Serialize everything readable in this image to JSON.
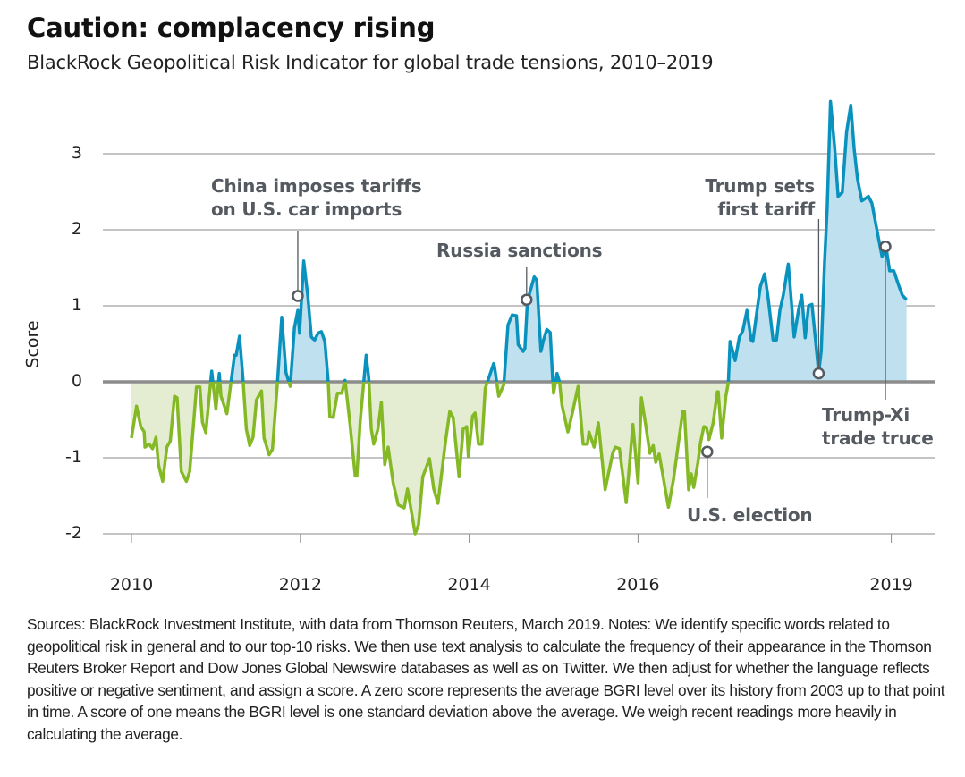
{
  "title": "Caution: complacency rising",
  "subtitle": "BlackRock Geopolitical Risk Indicator for global trade tensions, 2010–2019",
  "footnote": "Sources: BlackRock Investment Institute, with data from Thomson Reuters, March 2019. Notes: We identify specific words related to geopolitical risk in general and to our top-10 risks. We then use text analysis to calculate the frequency of their appearance in the Thomson Reuters Broker Report and Dow Jones Global Newswire databases as well as on Twitter. We then adjust for whether the language reflects positive or negative sentiment, and assign a score. A zero score represents the average BGRI level over its history from 2003 up to that point in time. A score of one means the BGRI level is one standard deviation above the average. We weigh recent readings more heavily in calculating the average.",
  "chart_data": {
    "type": "area",
    "title": "Caution: complacency rising",
    "subtitle": "BlackRock Geopolitical Risk Indicator for global trade tensions, 2010–2019",
    "xlabel": "",
    "ylabel": "Score",
    "xlim": [
      2009.85,
      2019.5
    ],
    "ylim": [
      -2.2,
      3.8
    ],
    "x_ticks": [
      "2010",
      "2012",
      "2014",
      "2016",
      "2019"
    ],
    "x_tick_values": [
      2010,
      2012,
      2014,
      2016,
      2019
    ],
    "y_ticks": [
      "-2",
      "-1",
      "0",
      "1",
      "2",
      "3"
    ],
    "y_tick_values": [
      -2,
      -1,
      0,
      1,
      2,
      3
    ],
    "grid": "horizontal",
    "colors": {
      "positive_line": "#0a92bf",
      "positive_fill": "#bfe0ef",
      "negative_line": "#84b925",
      "negative_fill": "#e4edd2",
      "zero_line": "#8c8c8c",
      "annotation": "#555a60"
    },
    "series": [
      {
        "x": [
          2010.0,
          2010.06,
          2010.11,
          2010.15,
          2010.16,
          2010.21,
          2010.25,
          2010.29,
          2010.32,
          2010.37,
          2010.42,
          2010.46,
          2010.51,
          2010.54,
          2010.59,
          2010.65,
          2010.69,
          2010.77,
          2010.81,
          2010.84,
          2010.88,
          2010.95,
          2011.0,
          2011.04,
          2011.06,
          2011.13,
          2011.22,
          2011.24,
          2011.28,
          2011.32,
          2011.36,
          2011.4,
          2011.44,
          2011.48,
          2011.54,
          2011.57,
          2011.63,
          2011.67,
          2011.73,
          2011.78,
          2011.83,
          2011.88,
          2011.93,
          2011.97,
          2011.99,
          2012.04,
          2012.09,
          2012.13,
          2012.17,
          2012.21,
          2012.25,
          2012.29,
          2012.33,
          2012.35,
          2012.39,
          2012.44,
          2012.49,
          2012.53,
          2012.58,
          2012.65,
          2012.67,
          2012.71,
          2012.78,
          2012.81,
          2012.84,
          2012.87,
          2012.92,
          2012.96,
          2013.0,
          2013.04,
          2013.1,
          2013.16,
          2013.23,
          2013.27,
          2013.36,
          2013.4,
          2013.45,
          2013.53,
          2013.58,
          2013.63,
          2013.72,
          2013.77,
          2013.81,
          2013.88,
          2013.93,
          2013.97,
          2013.99,
          2014.04,
          2014.07,
          2014.11,
          2014.15,
          2014.19,
          2014.29,
          2014.3,
          2014.35,
          2014.41,
          2014.46,
          2014.51,
          2014.56,
          2014.58,
          2014.64,
          2014.66,
          2014.69,
          2014.77,
          2014.8,
          2014.85,
          2014.88,
          2014.92,
          2014.96,
          2014.99,
          2015.0,
          2015.04,
          2015.07,
          2015.1,
          2015.17,
          2015.22,
          2015.29,
          2015.35,
          2015.4,
          2015.42,
          2015.48,
          2015.53,
          2015.61,
          2015.7,
          2015.73,
          2015.78,
          2015.86,
          2015.94,
          2016.0,
          2016.04,
          2016.09,
          2016.14,
          2016.18,
          2016.21,
          2016.25,
          2016.36,
          2016.42,
          2016.53,
          2016.55,
          2016.6,
          2016.63,
          2016.66,
          2016.71,
          2016.74,
          2016.78,
          2016.81,
          2016.84,
          2016.89,
          2016.94,
          2016.95,
          2016.99,
          2017.04,
          2017.07,
          2017.09,
          2017.15,
          2017.2,
          2017.24,
          2017.29,
          2017.34,
          2017.36,
          2017.42,
          2017.45,
          2017.5,
          2017.54,
          2017.6,
          2017.64,
          2017.68,
          2017.72,
          2017.78,
          2017.8,
          2017.85,
          2017.9,
          2017.94,
          2017.98,
          2018.02,
          2018.06,
          2018.14,
          2018.17,
          2018.21,
          2018.24,
          2018.28,
          2018.33,
          2018.37,
          2018.42,
          2018.47,
          2018.52,
          2018.56,
          2018.6,
          2018.65,
          2018.73,
          2018.77,
          2018.85,
          2018.89,
          2018.94,
          2018.98,
          2019.03,
          2019.09,
          2019.13,
          2019.18
        ],
        "y": [
          -0.74,
          -0.32,
          -0.59,
          -0.66,
          -0.86,
          -0.82,
          -0.88,
          -0.73,
          -1.09,
          -1.31,
          -0.86,
          -0.78,
          -0.19,
          -0.21,
          -1.18,
          -1.31,
          -1.18,
          -0.07,
          -0.07,
          -0.53,
          -0.67,
          0.14,
          -0.36,
          0.11,
          -0.19,
          -0.42,
          0.35,
          0.35,
          0.6,
          0.05,
          -0.62,
          -0.84,
          -0.73,
          -0.24,
          -0.12,
          -0.74,
          -0.96,
          -0.89,
          0.0,
          0.85,
          0.12,
          -0.06,
          0.71,
          0.94,
          0.64,
          1.59,
          1.11,
          0.59,
          0.55,
          0.64,
          0.66,
          0.53,
          0.0,
          -0.46,
          -0.47,
          -0.15,
          -0.15,
          0.02,
          -0.47,
          -1.24,
          -1.24,
          -0.51,
          0.35,
          0.05,
          -0.62,
          -0.82,
          -0.62,
          -0.27,
          -1.09,
          -0.86,
          -1.33,
          -1.62,
          -1.66,
          -1.41,
          -2.0,
          -1.88,
          -1.25,
          -1.01,
          -1.41,
          -1.6,
          -0.78,
          -0.39,
          -0.47,
          -1.25,
          -0.62,
          -0.59,
          -0.98,
          -0.45,
          -0.41,
          -0.82,
          -0.82,
          -0.09,
          0.24,
          0.2,
          -0.19,
          -0.04,
          0.75,
          0.88,
          0.87,
          0.49,
          0.4,
          0.44,
          1.06,
          1.38,
          1.34,
          0.4,
          0.55,
          0.69,
          0.65,
          0.0,
          -0.15,
          0.11,
          0.0,
          -0.31,
          -0.66,
          -0.42,
          -0.06,
          -0.82,
          -0.82,
          -0.66,
          -0.86,
          -0.54,
          -1.42,
          -0.94,
          -0.86,
          -0.88,
          -1.59,
          -0.56,
          -1.33,
          -0.21,
          -0.56,
          -0.94,
          -0.84,
          -1.06,
          -0.95,
          -1.65,
          -1.29,
          -0.39,
          -0.39,
          -1.42,
          -1.21,
          -1.39,
          -1.06,
          -0.8,
          -0.59,
          -0.6,
          -0.76,
          -0.54,
          -0.13,
          -0.13,
          -0.74,
          -0.19,
          -0.01,
          0.53,
          0.28,
          0.59,
          0.67,
          0.94,
          0.55,
          0.53,
          1.02,
          1.26,
          1.42,
          1.11,
          0.55,
          0.55,
          0.94,
          1.14,
          1.55,
          1.29,
          0.59,
          0.94,
          1.14,
          0.58,
          1.0,
          1.02,
          0.12,
          0.4,
          1.58,
          2.28,
          3.69,
          3.06,
          2.44,
          2.49,
          3.29,
          3.64,
          3.06,
          2.67,
          2.38,
          2.44,
          2.35,
          1.88,
          1.65,
          1.76,
          1.46,
          1.46,
          1.26,
          1.14,
          1.08
        ]
      }
    ],
    "annotations": [
      {
        "line1": "China imposes tariffs",
        "line2": "on U.S. car imports",
        "x": 2011.97,
        "y": 1.13
      },
      {
        "line1": "Russia sanctions",
        "line2": "",
        "x": 2014.68,
        "y": 1.08
      },
      {
        "line1": "U.S. election",
        "line2": "",
        "x": 2016.82,
        "y": -0.92
      },
      {
        "line1": "Trump sets",
        "line2": "first tariff",
        "x": 2018.14,
        "y": 0.11
      },
      {
        "line1": "Trump-Xi",
        "line2": "trade truce",
        "x": 2018.93,
        "y": 1.78
      }
    ]
  }
}
